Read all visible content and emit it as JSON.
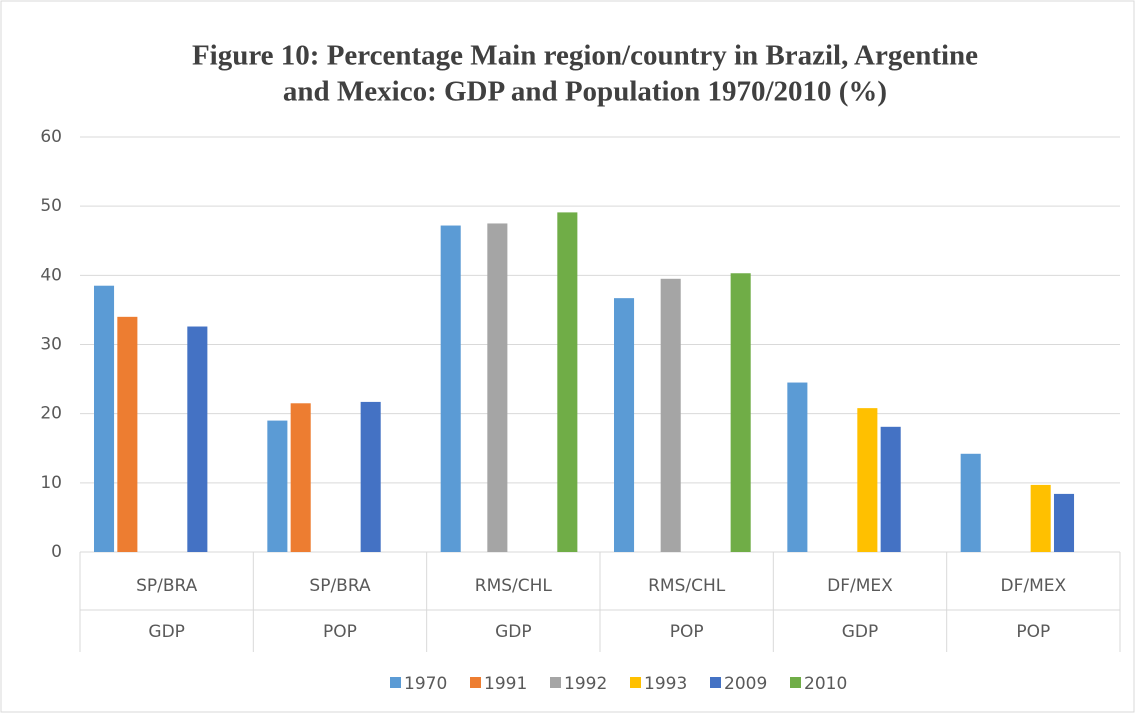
{
  "chart_data": {
    "type": "bar",
    "title": [
      "Figure 10: Percentage Main region/country in Brazil, Argentine",
      "and Mexico: GDP and Population 1970/2010 (%)"
    ],
    "categories": [
      [
        "SP/BRA",
        "GDP"
      ],
      [
        "SP/BRA",
        "POP"
      ],
      [
        "RMS/CHL",
        "GDP"
      ],
      [
        "RMS/CHL",
        "POP"
      ],
      [
        "DF/MEX",
        "GDP"
      ],
      [
        "DF/MEX",
        "POP"
      ]
    ],
    "series": [
      {
        "name": "1970",
        "color": "#5b9bd5",
        "values": [
          38.5,
          19,
          47.2,
          36.7,
          24.5,
          14.2
        ]
      },
      {
        "name": "1991",
        "color": "#ed7d31",
        "values": [
          34,
          21.5,
          null,
          null,
          null,
          null
        ]
      },
      {
        "name": "1992",
        "color": "#a5a5a5",
        "values": [
          null,
          null,
          47.5,
          39.5,
          null,
          null
        ]
      },
      {
        "name": "1993",
        "color": "#ffc000",
        "values": [
          null,
          null,
          null,
          null,
          20.8,
          9.7
        ]
      },
      {
        "name": "2009",
        "color": "#4472c4",
        "values": [
          32.6,
          21.7,
          null,
          null,
          18.1,
          8.4
        ]
      },
      {
        "name": "2010",
        "color": "#70ad47",
        "values": [
          null,
          null,
          49.1,
          40.3,
          null,
          null
        ]
      }
    ],
    "ylim": [
      0,
      60
    ],
    "yticks": [
      0,
      10,
      20,
      30,
      40,
      50,
      60
    ],
    "grid": true,
    "legend": "bottom"
  }
}
